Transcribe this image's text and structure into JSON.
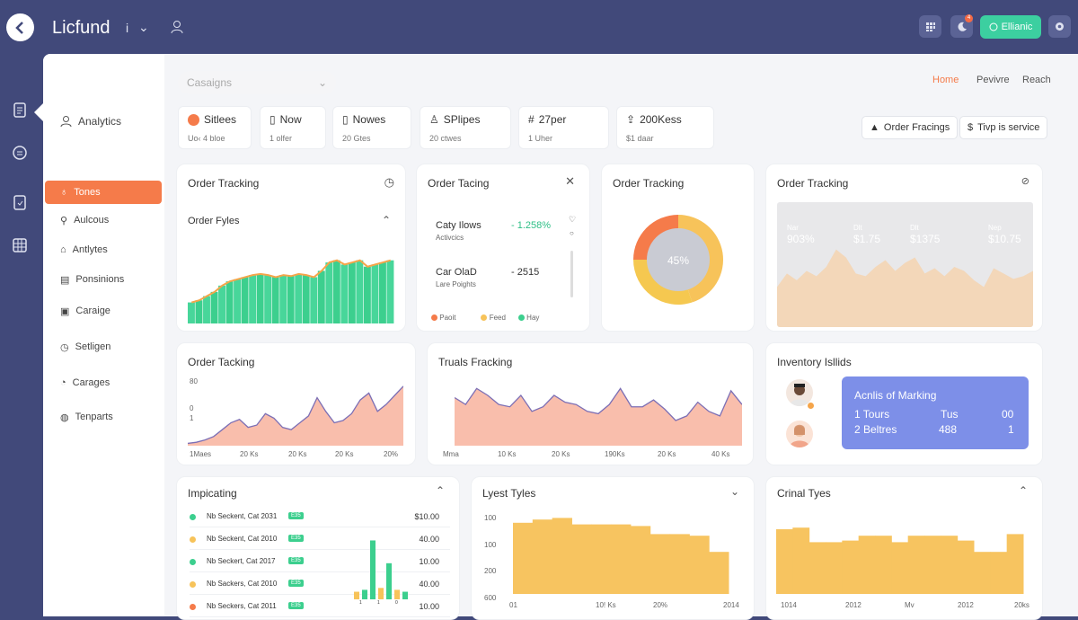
{
  "app": {
    "brand": "Licfund"
  },
  "topbar": {
    "info_icon": "i",
    "notif_count": "4",
    "green_label": "Ellianic"
  },
  "sidebar": {
    "heading": "Analytics",
    "items": [
      {
        "label": "Tones",
        "active": true
      },
      {
        "label": "Aulcous"
      },
      {
        "label": "Antlytes"
      },
      {
        "label": "Ponsinions"
      },
      {
        "label": "Caraige"
      },
      {
        "label": "Setligen"
      },
      {
        "label": "Carages"
      },
      {
        "label": "Tenparts"
      }
    ]
  },
  "search": {
    "placeholder": "Casaigns"
  },
  "nav": {
    "home": "Home",
    "preview": "Pevivre",
    "reach": "Reach"
  },
  "stats": [
    {
      "title": "Sitlees",
      "sub": "Uo‹ 4 bloe"
    },
    {
      "title": "Now",
      "sub": "1 olfer"
    },
    {
      "title": "Nowes",
      "sub": "20 Gtes"
    },
    {
      "title": "SPlipes",
      "sub": "20 ctwes"
    },
    {
      "title": "27per",
      "sub": "1 Uher"
    },
    {
      "title": "200Kess",
      "sub": "$1 daar"
    }
  ],
  "actions": {
    "order": "Order Fracings",
    "service": "Tivp is service"
  },
  "panel1": {
    "title": "Order Tracking",
    "subtitle": "Order Fyles",
    "values": [
      20,
      22,
      26,
      30,
      36,
      40,
      42,
      44,
      46,
      47,
      46,
      44,
      46,
      45,
      47,
      46,
      44,
      50,
      58,
      60,
      56,
      58,
      60,
      54,
      56,
      58,
      60
    ]
  },
  "panel2": {
    "title": "Order Tacing",
    "row1": {
      "name": "Caty Ilows",
      "sub": "Activcics",
      "value": "- 1.258%"
    },
    "row2": {
      "name": "Car OlaD",
      "sub": "Lare Poights",
      "value": "- 2515"
    },
    "legend": [
      {
        "label": "Paoit",
        "color": "#f57b4a"
      },
      {
        "label": "Feed",
        "color": "#f7c35a"
      },
      {
        "label": "Hay",
        "color": "#3ccf8e"
      }
    ]
  },
  "panel3": {
    "title": "Order Tracking",
    "center": "45%",
    "segments": [
      {
        "value": 45,
        "color": "#f7c35a"
      },
      {
        "value": 30,
        "color": "#f5c850"
      },
      {
        "value": 25,
        "color": "#f57b4a"
      }
    ]
  },
  "panel4": {
    "title": "Order Tracking",
    "labels": [
      {
        "top": "Nar",
        "bottom": "903%"
      },
      {
        "top": "Dlt",
        "bottom": "$1.75"
      },
      {
        "top": "Dlt",
        "bottom": "$1375"
      },
      {
        "top": "Nep",
        "bottom": "$10.75"
      }
    ],
    "values": [
      30,
      40,
      35,
      42,
      38,
      45,
      58,
      52,
      40,
      38,
      45,
      50,
      42,
      48,
      52,
      40,
      44,
      38,
      45,
      42,
      35,
      30,
      44,
      40,
      36,
      38,
      42
    ]
  },
  "panel5": {
    "title": "Order Tacking",
    "yticks": [
      "80",
      "0",
      "1"
    ],
    "xticks": [
      "1Maes",
      "20 Ks",
      "20 Ks",
      "20 Ks",
      "20 Ks",
      "20%"
    ],
    "values": [
      2,
      3,
      5,
      8,
      14,
      20,
      23,
      16,
      18,
      28,
      24,
      16,
      14,
      20,
      26,
      42,
      30,
      20,
      22,
      28,
      40,
      46,
      30,
      36,
      44,
      52
    ]
  },
  "panel6": {
    "title": "Truals Fracking",
    "xticks": [
      "Mma",
      "10 Ks",
      "20 Ks",
      "190Ks",
      "20 Ks",
      "40 Ks"
    ],
    "values": [
      42,
      36,
      50,
      44,
      36,
      34,
      44,
      30,
      34,
      44,
      38,
      36,
      30,
      28,
      36,
      50,
      34,
      34,
      40,
      32,
      22,
      26,
      38,
      30,
      26,
      48,
      36
    ]
  },
  "panel7": {
    "title": "Inventory Isllids",
    "card_title": "Acnlis of Marking",
    "row1": {
      "a": "1 Tours",
      "b": "Tus",
      "c": "00"
    },
    "row2": {
      "a": "2 Beltres",
      "b": "488",
      "c": "1"
    }
  },
  "panel8": {
    "title": "Impicating",
    "rows": [
      {
        "label": "Nb Seckent, Cat 2031",
        "value": "$10.00",
        "color": "#3ccf8e"
      },
      {
        "label": "Nb Seckent, Cat 2010",
        "value": "40.00",
        "color": "#f7c35a"
      },
      {
        "label": "Nb Seckert, Cat 2017",
        "value": "10.00",
        "color": "#3ccf8e"
      },
      {
        "label": "Nb Sackers, Cat 2010",
        "value": "40.00",
        "color": "#f7c35a"
      },
      {
        "label": "Nb Seckers, Cat 2011",
        "value": "10.00",
        "color": "#f57b4a"
      }
    ],
    "chip": "E35",
    "bar_values": [
      8,
      10,
      62,
      12,
      38,
      10,
      8
    ],
    "bar_ticks": [
      "1",
      "1",
      "0"
    ]
  },
  "panel9": {
    "title": "Lyest Tyles",
    "yticks": [
      "100",
      "100",
      "200",
      "600"
    ],
    "xticks": [
      "01",
      "10! Ks",
      "20%",
      "2014"
    ],
    "values": [
      88,
      92,
      94,
      86,
      86,
      86,
      84,
      74,
      74,
      72,
      52
    ]
  },
  "panel10": {
    "title": "Crinal Tyes",
    "xticks": [
      "1014",
      "2012",
      "Mv",
      "2012",
      "20ks"
    ],
    "values": [
      80,
      82,
      64,
      64,
      66,
      72,
      72,
      64,
      72,
      72,
      72,
      66,
      52,
      52,
      74
    ]
  },
  "colors": {
    "accent": "#f57b4a",
    "green": "#3ccf8e",
    "yellow": "#f7c35a",
    "navy": "#41497a",
    "salmon": "#f8b7a3"
  }
}
